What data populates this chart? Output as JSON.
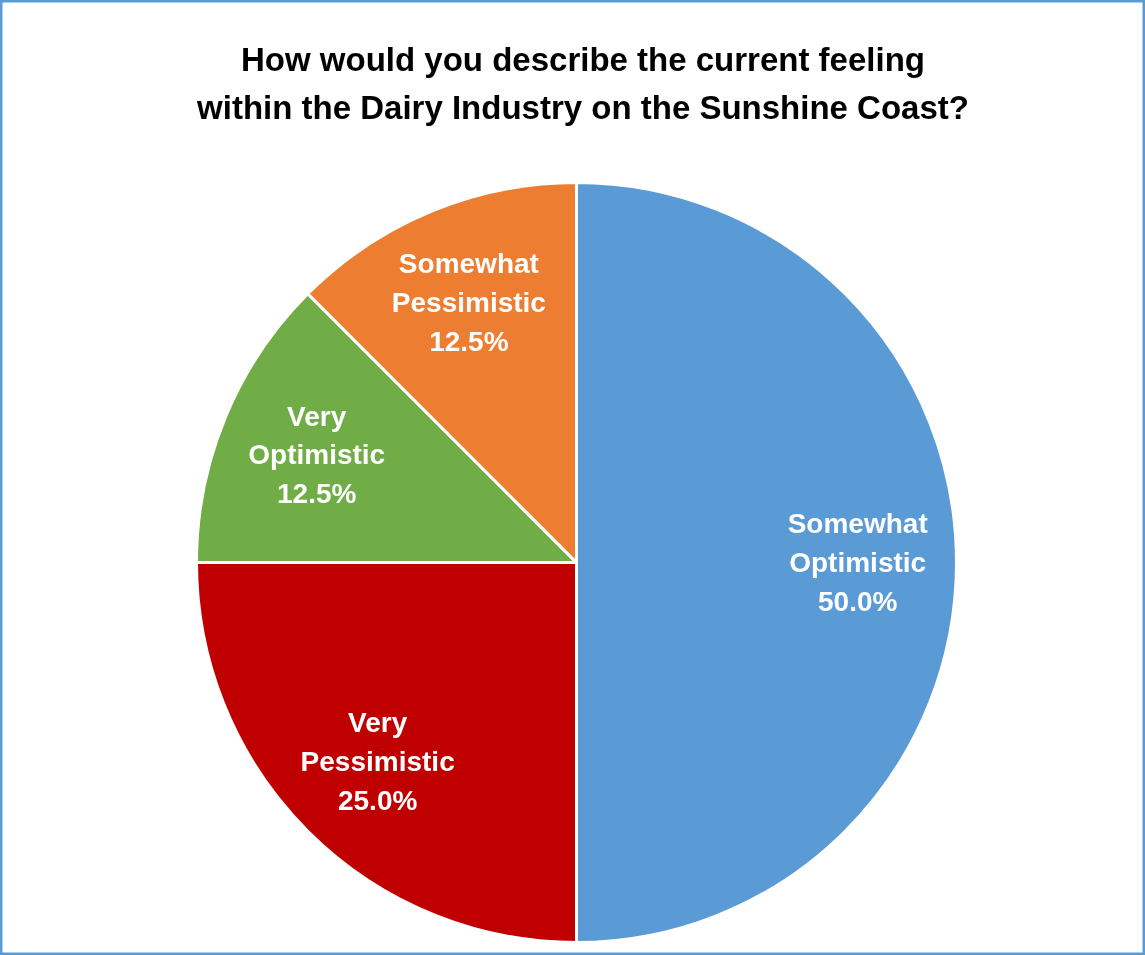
{
  "chart_data": {
    "type": "pie",
    "title": "How would you describe the current feeling\nwithin the Dairy Industry on the Sunshine Coast?",
    "categories": [
      "Somewhat Optimistic",
      "Very Pessimistic",
      "Very Optimistic",
      "Somewhat Pessimistic"
    ],
    "values": [
      50.0,
      25.0,
      12.5,
      12.5
    ],
    "colors": [
      "#5b9bd5",
      "#c00000",
      "#70ad47",
      "#ed7d31"
    ],
    "value_labels": [
      "50.0%",
      "25.0%",
      "12.5%",
      "12.5%"
    ]
  }
}
